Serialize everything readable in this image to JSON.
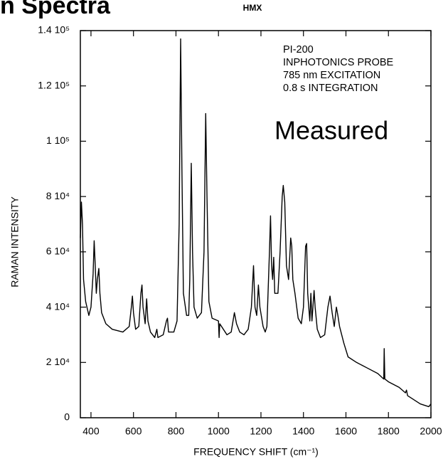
{
  "chart_data": {
    "type": "line",
    "header": "n Spectra",
    "title": "HMX",
    "xlabel": "FREQUENCY SHIFT (cm⁻¹)",
    "ylabel": "RAMAN INTENSITY",
    "annotations": [
      "PI-200",
      "INPHOTONICS PROBE",
      "785 nm EXCITATION",
      "0.8 s INTEGRATION"
    ],
    "label": "Measured",
    "xlim": [
      350,
      2000
    ],
    "ylim": [
      0,
      140000
    ],
    "xticks": [
      400,
      600,
      800,
      1000,
      1200,
      1400,
      1600,
      1800,
      2000
    ],
    "yticks": [
      0,
      {
        "value": 20000,
        "label": "2 10⁴"
      },
      {
        "value": 40000,
        "label": "4 10⁴"
      },
      {
        "value": 60000,
        "label": "6 10⁴"
      },
      {
        "value": 80000,
        "label": "8 10⁴"
      },
      {
        "value": 100000,
        "label": "1 10⁵"
      },
      {
        "value": 120000,
        "label": "1.2 10⁵"
      },
      {
        "value": 140000,
        "label": "1.4 10⁵"
      }
    ],
    "series": [
      {
        "color": "#000000",
        "x": [
          350,
          355,
          360,
          365,
          375,
          390,
          400,
          410,
          415,
          420,
          425,
          430,
          437,
          442,
          450,
          470,
          500,
          550,
          580,
          590,
          595,
          600,
          610,
          625,
          635,
          640,
          645,
          655,
          662,
          668,
          680,
          700,
          710,
          715,
          740,
          755,
          760,
          765,
          790,
          805,
          815,
          822,
          828,
          835,
          850,
          860,
          865,
          872,
          878,
          885,
          900,
          920,
          932,
          940,
          946,
          955,
          970,
          1000,
          1003,
          1006,
          1040,
          1060,
          1075,
          1085,
          1100,
          1120,
          1140,
          1155,
          1165,
          1172,
          1180,
          1188,
          1195,
          1210,
          1220,
          1228,
          1240,
          1245,
          1250,
          1255,
          1260,
          1265,
          1280,
          1290,
          1300,
          1305,
          1312,
          1320,
          1330,
          1340,
          1345,
          1350,
          1360,
          1365,
          1375,
          1390,
          1400,
          1410,
          1415,
          1420,
          1430,
          1435,
          1440,
          1450,
          1455,
          1465,
          1480,
          1500,
          1515,
          1525,
          1535,
          1545,
          1555,
          1562,
          1570,
          1590,
          1610,
          1650,
          1700,
          1750,
          1778,
          1780,
          1783,
          1800,
          1850,
          1880,
          1885,
          1890,
          1950,
          1990,
          2000
        ],
        "values": [
          65000,
          78000,
          70000,
          50000,
          42000,
          37000,
          40000,
          52000,
          64000,
          55000,
          45000,
          50000,
          54000,
          45000,
          38000,
          34000,
          32000,
          31000,
          33000,
          40000,
          44000,
          38000,
          32000,
          33000,
          45000,
          48000,
          40000,
          34000,
          43000,
          35000,
          31000,
          29000,
          32000,
          29000,
          30000,
          35000,
          36000,
          31000,
          31000,
          35000,
          70000,
          137000,
          90000,
          45000,
          37000,
          37000,
          50000,
          92000,
          60000,
          40000,
          36000,
          38000,
          60000,
          110000,
          80000,
          42000,
          36000,
          35000,
          29000,
          34000,
          30000,
          31000,
          38000,
          34000,
          31000,
          30000,
          32000,
          40000,
          55000,
          40000,
          37000,
          48000,
          40000,
          33000,
          31000,
          33000,
          60000,
          73000,
          55000,
          50000,
          58000,
          45000,
          45000,
          60000,
          80000,
          84000,
          78000,
          55000,
          50000,
          65000,
          62000,
          50000,
          45000,
          42000,
          36000,
          34000,
          40000,
          62000,
          63000,
          45000,
          35000,
          45000,
          35000,
          46000,
          40000,
          32000,
          29000,
          30000,
          40000,
          44000,
          38000,
          33000,
          40000,
          37000,
          33000,
          27000,
          22000,
          20000,
          18000,
          16000,
          14000,
          25000,
          14000,
          13000,
          11000,
          9000,
          10000,
          8000,
          5000,
          4000,
          5000
        ]
      }
    ]
  }
}
